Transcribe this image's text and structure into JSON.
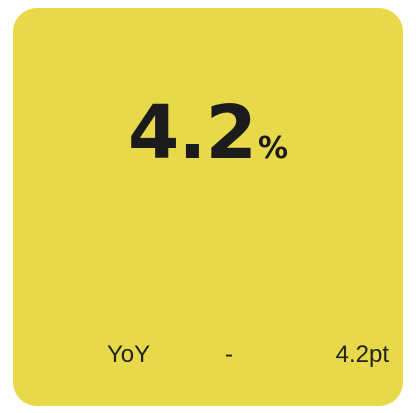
{
  "card": {
    "value": "4.2",
    "unit": "%",
    "comparison": {
      "label": "YoY",
      "sign": "-",
      "change": "4.2pt"
    }
  }
}
